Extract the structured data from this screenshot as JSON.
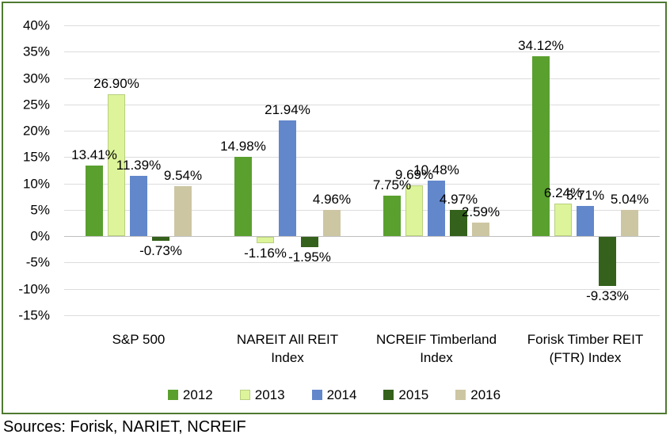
{
  "chart_data": {
    "type": "bar",
    "title": "",
    "categories": [
      "S&P 500",
      "NAREIT All REIT Index",
      "NCREIF Timberland Index",
      "Forisk Timber REIT (FTR) Index"
    ],
    "series": [
      {
        "name": "2012",
        "color": "#5aa02e",
        "values": [
          13.41,
          14.98,
          7.75,
          34.12
        ],
        "labels": [
          "13.41%",
          "14.98%",
          "7.75%",
          "34.12%"
        ]
      },
      {
        "name": "2013",
        "color": "#ddf49a",
        "border_color": "#b9cf80",
        "values": [
          26.9,
          -1.16,
          9.69,
          6.24
        ],
        "labels": [
          "26.90%",
          "-1.16%",
          "9.69%",
          "6.24%"
        ]
      },
      {
        "name": "2014",
        "color": "#6287cb",
        "values": [
          11.39,
          21.94,
          10.48,
          5.71
        ],
        "labels": [
          "11.39%",
          "21.94%",
          "10.48%",
          "5.71%"
        ]
      },
      {
        "name": "2015",
        "color": "#34611b",
        "values": [
          -0.73,
          -1.95,
          4.97,
          -9.33
        ],
        "labels": [
          "-0.73%",
          "-1.95%",
          "4.97%",
          "-9.33%"
        ]
      },
      {
        "name": "2016",
        "color": "#cdc6a3",
        "values": [
          9.54,
          4.96,
          2.59,
          5.04
        ],
        "labels": [
          "9.54%",
          "4.96%",
          "2.59%",
          "5.04%"
        ]
      }
    ],
    "y_ticks": [
      {
        "value": 40,
        "label": "40%"
      },
      {
        "value": 35,
        "label": "35%"
      },
      {
        "value": 30,
        "label": "30%"
      },
      {
        "value": 25,
        "label": "25%"
      },
      {
        "value": 20,
        "label": "20%"
      },
      {
        "value": 15,
        "label": "15%"
      },
      {
        "value": 10,
        "label": "10%"
      },
      {
        "value": 5,
        "label": "5%"
      },
      {
        "value": 0,
        "label": "0%"
      },
      {
        "value": -5,
        "label": "-5%"
      },
      {
        "value": -10,
        "label": "-10%"
      },
      {
        "value": -15,
        "label": "-15%"
      }
    ],
    "ylim": [
      -15,
      40
    ],
    "grid": true,
    "legend_position": "bottom",
    "data_labels": true,
    "border_color": "#4e7a30"
  },
  "footer": {
    "sources": "Sources: Forisk, NARIET, NCREIF"
  }
}
